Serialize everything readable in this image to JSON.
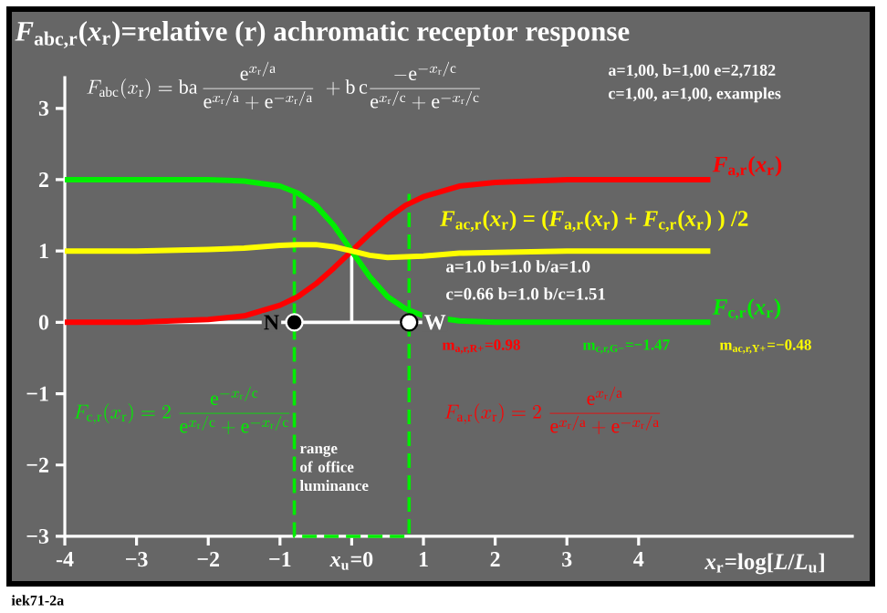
{
  "chart_data": {
    "type": "line",
    "title": "*F*$_{abc,r}$(*x*$_{r}$)=relative (r) achromatic receptor response",
    "xlabel": "*x*$_{r}$=log[*L*/*L*$_{u}$]",
    "x": [
      -4,
      -3,
      -2,
      -1.5,
      -1,
      -0.75,
      -0.5,
      -0.25,
      0,
      0.25,
      0.5,
      0.75,
      1,
      1.5,
      2,
      3,
      4,
      5
    ],
    "series": [
      {
        "type": "line",
        "color": "#ffffff",
        "x": [
          -4,
          1.3
        ],
        "values": [
          0,
          0
        ]
      },
      {
        "type": "line",
        "color": "#ffffff",
        "x": [
          0,
          0
        ],
        "values": [
          0,
          1
        ]
      },
      {
        "type": "line",
        "color": "#00ee00",
        "line_style": "dashed",
        "x": [
          -0.8,
          -0.8,
          0.8,
          0.8
        ],
        "values": [
          1.8,
          -3,
          -3,
          1.8
        ]
      },
      {
        "name": "*F*$_{a,r}$(*x*$_{r}$)",
        "color": "#ff0000",
        "values": [
          0.0,
          0.0,
          0.04,
          0.09,
          0.24,
          0.36,
          0.54,
          0.76,
          1.0,
          1.24,
          1.46,
          1.64,
          1.76,
          1.91,
          1.96,
          2.0,
          2.0,
          2.0
        ]
      },
      {
        "name": "*F*$_{c,r}$(*x*$_{r}$)",
        "color": "#00ee00",
        "values": [
          2.0,
          2.0,
          2.0,
          1.98,
          1.91,
          1.81,
          1.64,
          1.36,
          1.0,
          0.64,
          0.36,
          0.19,
          0.09,
          0.02,
          0.0,
          0.0,
          0.0,
          0.0
        ]
      },
      {
        "name": "*F*$_{ac,r}$(*x*$_{r}$) = (*F*$_{a,r}$(*x*$_{r}$) + *F*$_{c,r}$(*x*$_{r}$) ) /2",
        "color": "#ffff00",
        "values": [
          1.0,
          1.0,
          1.02,
          1.04,
          1.08,
          1.09,
          1.09,
          1.06,
          1.0,
          0.94,
          0.91,
          0.92,
          0.93,
          0.97,
          0.98,
          1.0,
          1.0,
          1.0
        ]
      },
      {
        "type": "scatter",
        "marker": "circle",
        "x": [
          -0.8,
          0.8
        ],
        "values": [
          0,
          0
        ],
        "colors": [
          "#000000",
          "#ffffff"
        ]
      }
    ],
    "xlim": [
      -4,
      7
    ],
    "ylim": [
      -3,
      3.45
    ],
    "xticks": [
      -4,
      {
        "value": -3,
        "label": "−3"
      },
      {
        "value": -2,
        "label": "−2"
      },
      {
        "value": -1,
        "label": "−1"
      },
      {
        "value": 0,
        "label": "*x*$_{u}$=0"
      },
      1,
      2,
      3,
      4
    ],
    "yticks": [
      {
        "value": -3,
        "label": "−3"
      },
      {
        "value": -2,
        "label": "−2"
      },
      {
        "value": -1,
        "label": "−1"
      },
      0,
      1,
      2,
      3
    ],
    "annotations": [
      "F_{\\mathrm{abc}}(x_{\\mathrm{r}})=\\mathrm{ba}\\,\\frac{\\mathrm{e}^{x_{\\mathrm{r}}/\\mathrm{a}}}{\\mathrm{e}^{x_{\\mathrm{r}}/\\mathrm{a}}+\\mathrm{e}^{-x_{\\mathrm{r}}/\\mathrm{a}}}\\;+\\mathrm{b\\,c}\\frac{-\\mathrm{e}^{-x_{\\mathrm{r}}/\\mathrm{c}}}{\\mathrm{e}^{x_{\\mathrm{r}}/\\mathrm{c}}+\\mathrm{e}^{-x_{\\mathrm{r}}/\\mathrm{c}}}",
      "a=1,00, b=1,00 e=2,7182",
      "c=1,00, a=1,00, examples",
      "a=1.0  b=1.0  b/a=1.0",
      "c=0.66  b=1.0  b/c=1.51",
      "m$_{a,r,R+}$=0.98",
      "m$_{c,r,G−}$=−1.47",
      "m$_{ac,r,Y+}$=−0.48",
      "F_{\\mathrm{c,r}}(x_{\\mathrm{r}})=2\\;\\frac{\\mathrm{e}^{-x_{\\mathrm{r}}/\\mathrm{c}}}{\\mathrm{e}^{x_{\\mathrm{r}}/\\mathrm{c}}+\\mathrm{e}^{-x_{\\mathrm{r}}/\\mathrm{c}}}",
      "F_{\\mathrm{a,r}}(x_{\\mathrm{r}})=2\\;\\frac{\\mathrm{e}^{x_{\\mathrm{r}}/\\mathrm{a}}}{\\mathrm{e}^{x_{\\mathrm{r}}/\\mathrm{a}}+\\mathrm{e}^{-x_{\\mathrm{r}}/\\mathrm{a}}}",
      "range of office luminance",
      {
        "text": "N",
        "x": -0.8,
        "y": 0
      },
      {
        "text": "W",
        "x": 0.8,
        "y": 0
      },
      "iek71-2a"
    ]
  }
}
